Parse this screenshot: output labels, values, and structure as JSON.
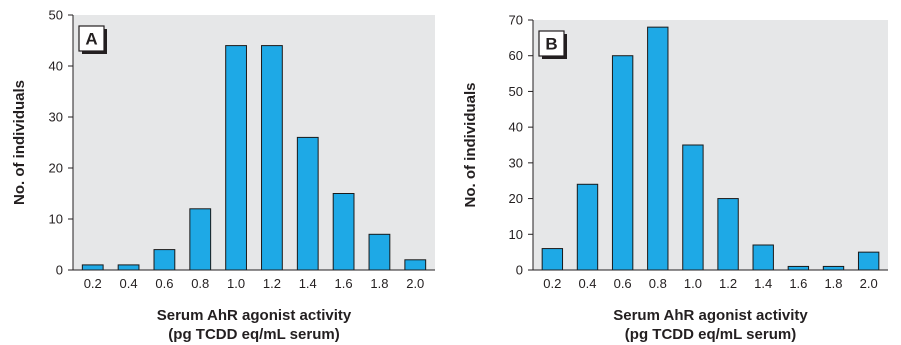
{
  "colors": {
    "bar": "#1ea9e6",
    "bar_stroke": "#1a1a1a",
    "plot_bg": "#e6e7e8",
    "axis": "#231f20"
  },
  "chart_data": [
    {
      "type": "bar",
      "panel_label": "A",
      "categories": [
        "0.2",
        "0.4",
        "0.6",
        "0.8",
        "1.0",
        "1.2",
        "1.4",
        "1.6",
        "1.8",
        "2.0"
      ],
      "values": [
        1,
        1,
        4,
        12,
        44,
        44,
        26,
        15,
        7,
        2
      ],
      "ylim": [
        0,
        50
      ],
      "yticks": [
        "0",
        "10",
        "20",
        "30",
        "40",
        "50"
      ],
      "ylabel": "No. of individuals",
      "xlabel_line1": "Serum AhR agonist activity",
      "xlabel_line2": "(pg TCDD eq/mL serum)",
      "grid": false
    },
    {
      "type": "bar",
      "panel_label": "B",
      "categories": [
        "0.2",
        "0.4",
        "0.6",
        "0.8",
        "1.0",
        "1.2",
        "1.4",
        "1.6",
        "1.8",
        "2.0"
      ],
      "values": [
        6,
        24,
        60,
        68,
        35,
        20,
        7,
        1,
        1,
        5
      ],
      "ylim": [
        0,
        70
      ],
      "yticks": [
        "0",
        "10",
        "20",
        "30",
        "40",
        "50",
        "60",
        "70"
      ],
      "ylabel": "No. of individuals",
      "xlabel_line1": "Serum AhR agonist activity",
      "xlabel_line2": "(pg TCDD eq/mL serum)",
      "grid": false
    }
  ]
}
